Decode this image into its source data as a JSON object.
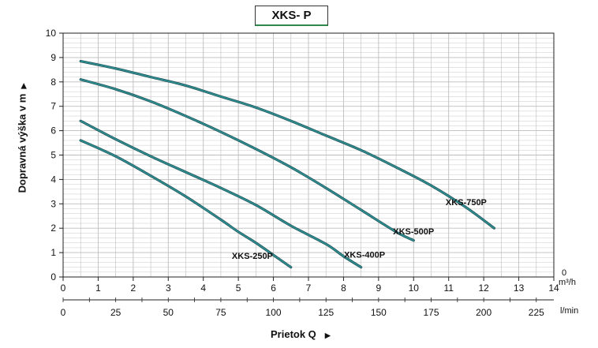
{
  "chart_data": {
    "type": "line",
    "title": "XKS- P",
    "ylabel": "Dopravná výška v m",
    "xlabel": "Prietok Q",
    "x_unit_primary": "m³/h",
    "x_unit_secondary": "l/min",
    "xlim": [
      0,
      14
    ],
    "ylim": [
      0,
      10
    ],
    "x_ticks_primary": [
      "0",
      "1",
      "2",
      "3",
      "4",
      "5",
      "6",
      "7",
      "8",
      "9",
      "10",
      "11",
      "12",
      "13",
      "14"
    ],
    "y_ticks": [
      "0",
      "1",
      "2",
      "3",
      "4",
      "5",
      "6",
      "7",
      "8",
      "9",
      "10"
    ],
    "x_ticks_secondary": [
      "0",
      "25",
      "50",
      "75",
      "100",
      "125",
      "150",
      "175",
      "200",
      "225"
    ],
    "y_zero_right": "0",
    "grid": true,
    "series": [
      {
        "name": "XKS-750P",
        "x": [
          0.5,
          1.5,
          2.5,
          3.5,
          4.5,
          5.5,
          6.5,
          7.5,
          8.5,
          9.5,
          10.5,
          11.5,
          12.3
        ],
        "y": [
          8.85,
          8.55,
          8.2,
          7.85,
          7.4,
          6.95,
          6.4,
          5.8,
          5.2,
          4.5,
          3.75,
          2.85,
          2.0
        ]
      },
      {
        "name": "XKS-500P",
        "x": [
          0.5,
          1.5,
          2.5,
          3.5,
          4.5,
          5.5,
          6.5,
          7.5,
          8.5,
          9.5,
          10.0
        ],
        "y": [
          8.1,
          7.7,
          7.2,
          6.6,
          5.95,
          5.25,
          4.5,
          3.65,
          2.75,
          1.85,
          1.5
        ]
      },
      {
        "name": "XKS-400P",
        "x": [
          0.5,
          1.5,
          2.5,
          3.5,
          4.5,
          5.5,
          6.5,
          7.5,
          8.0,
          8.5
        ],
        "y": [
          6.4,
          5.65,
          4.95,
          4.3,
          3.65,
          2.95,
          2.1,
          1.35,
          0.85,
          0.4
        ]
      },
      {
        "name": "XKS-250P",
        "x": [
          0.5,
          1.5,
          2.5,
          3.5,
          4.5,
          5.0,
          5.5,
          6.0,
          6.5
        ],
        "y": [
          5.6,
          4.95,
          4.15,
          3.3,
          2.35,
          1.85,
          1.4,
          0.9,
          0.4
        ]
      }
    ],
    "series_label_positions": [
      {
        "name": "XKS-750P",
        "x": 11.5,
        "y": 2.95
      },
      {
        "name": "XKS-500P",
        "x": 10.0,
        "y": 1.75
      },
      {
        "name": "XKS-400P",
        "x": 8.6,
        "y": 0.8
      },
      {
        "name": "XKS-250P",
        "x": 5.4,
        "y": 0.75
      }
    ],
    "colors": {
      "curve": "#2e8f93",
      "curve_dark": "#1f4f52",
      "grid": "#bdbdbd",
      "axis": "#222222"
    }
  }
}
